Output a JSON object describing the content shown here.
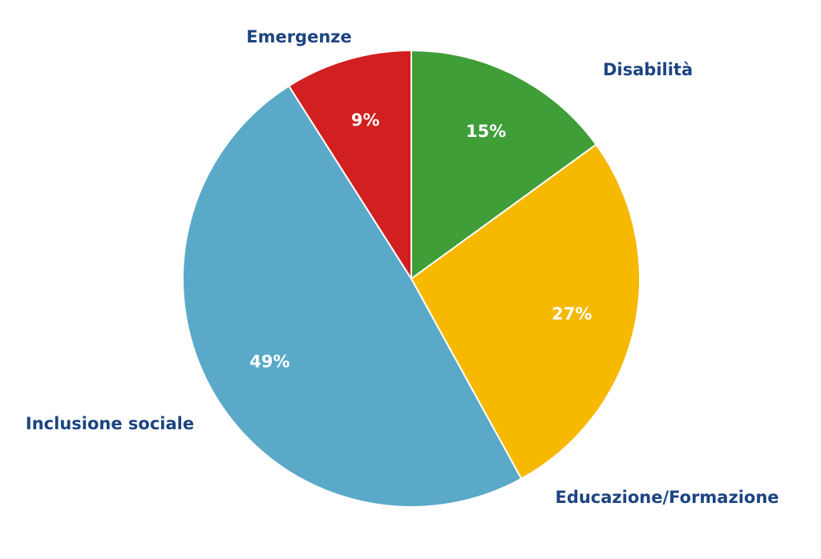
{
  "chart_data": {
    "type": "pie",
    "categories": [
      "Disabilità",
      "Educazione/Formazione",
      "Inclusione sociale",
      "Emergenze"
    ],
    "values": [
      15,
      27,
      49,
      9
    ],
    "value_labels": [
      "15%",
      "27%",
      "49%",
      "9%"
    ],
    "colors": [
      "#3f9e37",
      "#f7b800",
      "#5aa9c8",
      "#d21f1f"
    ]
  }
}
